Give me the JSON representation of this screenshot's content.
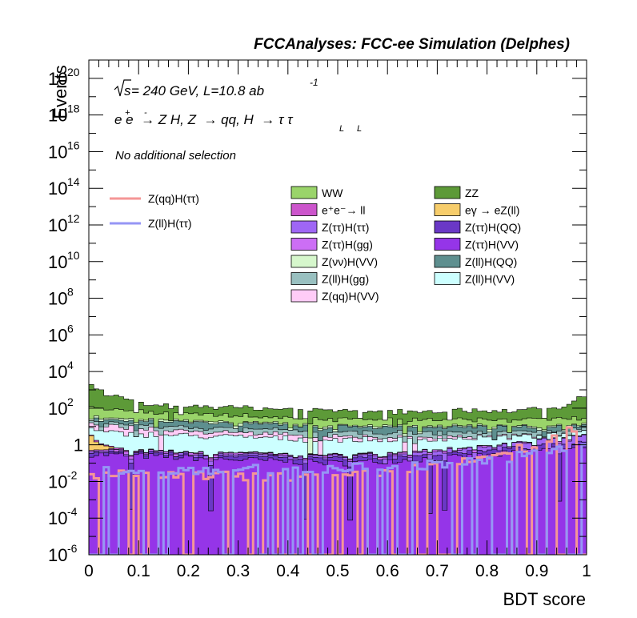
{
  "header": {
    "title": "FCCAnalyses: FCC-ee Simulation (Delphes)"
  },
  "annotations": {
    "sqrt_s": "s",
    "energy_lumi": " = 240 GeV, L=10.8 ab",
    "lumi_exp": "-1",
    "process_main": "e e  → Z H, Z  → qq, H  → τ τ",
    "process_sup": "+",
    "process_sup2": "-",
    "process_sub": "L",
    "selection": "No additional selection"
  },
  "axes": {
    "ylabel": "Events",
    "xlabel": "BDT score"
  },
  "colors": {
    "WW": "#9ad46a",
    "ZZ": "#5d9a38",
    "ee_ll": "#cc55cc",
    "egamma_eZll": "#f7cd6b",
    "Ztautau_Htautau": "#9f66f5",
    "Ztautau_HQQ": "#6a38c6",
    "Ztautau_Hgg": "#cc6ef5",
    "Ztautau_HVV": "#9535e8",
    "Znunu_HVV": "#d6f7cc",
    "Zll_HQQ": "#5e8f8f",
    "Zll_Hgg": "#99c0c0",
    "Zll_HVV": "#ccffff",
    "Zqq_HVV": "#ffccf7",
    "Zqq_Htautau": "#f59696",
    "Zll_Htautau": "#9696f5"
  },
  "chart_data": {
    "type": "area",
    "stacked": true,
    "log_y": true,
    "xlim": [
      0,
      1
    ],
    "ylim": [
      1e-06,
      1e+21
    ],
    "nbins": 100,
    "x_ticks": [
      "0",
      "0.1",
      "0.2",
      "0.3",
      "0.4",
      "0.5",
      "0.6",
      "0.7",
      "0.8",
      "0.9",
      "1"
    ],
    "y_ticks": [
      {
        "base": "10",
        "exp": "-6"
      },
      {
        "base": "10",
        "exp": "-4"
      },
      {
        "base": "10",
        "exp": "-2"
      },
      {
        "base": "1",
        "exp": ""
      },
      {
        "base": "10",
        "exp": "2"
      },
      {
        "base": "10",
        "exp": "4"
      },
      {
        "base": "10",
        "exp": "6"
      },
      {
        "base": "10",
        "exp": "8"
      },
      {
        "base": "10",
        "exp": "10"
      },
      {
        "base": "10",
        "exp": "12"
      },
      {
        "base": "10",
        "exp": "14"
      },
      {
        "base": "10",
        "exp": "16"
      },
      {
        "base": "10",
        "exp": "18"
      },
      {
        "base": "10",
        "exp": "20"
      }
    ],
    "legend_lines": [
      {
        "name": "Z(qq)H(ττ)",
        "color": "#f59696"
      },
      {
        "name": "Z(ll)H(ττ)",
        "color": "#9696f5"
      }
    ],
    "legend_fills": [
      {
        "name": "WW",
        "color": "#9ad46a"
      },
      {
        "name": "ZZ",
        "color": "#5d9a38"
      },
      {
        "name": "e⁺e⁻→ ll",
        "color": "#cc55cc"
      },
      {
        "name": "eγ → eZ(ll)",
        "color": "#f7cd6b"
      },
      {
        "name": "Z(ττ)H(ττ)",
        "color": "#9f66f5"
      },
      {
        "name": "Z(ττ)H(QQ)",
        "color": "#6a38c6"
      },
      {
        "name": "Z(ττ)H(gg)",
        "color": "#cc6ef5"
      },
      {
        "name": "Z(ττ)H(VV)",
        "color": "#9535e8"
      },
      {
        "name": "Z(νν)H(VV)",
        "color": "#d6f7cc"
      },
      {
        "name": "Z(ll)H(QQ)",
        "color": "#5e8f8f"
      },
      {
        "name": "Z(ll)H(gg)",
        "color": "#99c0c0"
      },
      {
        "name": "Z(ll)H(VV)",
        "color": "#ccffff"
      },
      {
        "name": "Z(qq)H(VV)",
        "color": "#ffccf7"
      }
    ],
    "stack_layers": [
      {
        "name": "Z(ττ)H(VV)",
        "color": "#9535e8",
        "shape": [
          [
            0,
            -0.5
          ],
          [
            0.5,
            -1.0
          ],
          [
            0.8,
            -0.6
          ],
          [
            1.0,
            0.0
          ]
        ]
      },
      {
        "name": "Z(ττ)H(QQ)",
        "color": "#6a38c6",
        "shape": [
          [
            0,
            -1.0
          ],
          [
            0.5,
            -1.2
          ],
          [
            0.8,
            -0.8
          ],
          [
            1.0,
            -0.2
          ]
        ]
      },
      {
        "name": "Z(ττ)H(ττ)",
        "color": "#9f66f5",
        "shape": [
          [
            0,
            -1.2
          ],
          [
            0.5,
            -1.3
          ],
          [
            0.8,
            -0.6
          ],
          [
            1.0,
            0.3
          ]
        ]
      },
      {
        "name": "Z(ττ)H(gg)",
        "color": "#cc6ef5",
        "shape": [
          [
            0,
            -1.0
          ],
          [
            0.5,
            -1.5
          ],
          [
            1.0,
            -0.5
          ]
        ]
      },
      {
        "name": "eγ → eZ(ll)",
        "color": "#f7cd6b",
        "shape": [
          [
            0,
            0.5
          ],
          [
            0.02,
            0.0
          ],
          [
            0.06,
            -1.5
          ],
          [
            0.1,
            -3.0
          ],
          [
            1.0,
            -3.0
          ]
        ]
      },
      {
        "name": "e⁺e⁻→ ll",
        "color": "#cc55cc",
        "shape": [
          [
            0,
            -0.5
          ],
          [
            0.1,
            -1.5
          ],
          [
            1.0,
            -2.0
          ]
        ]
      },
      {
        "name": "Z(ll)H(VV)",
        "color": "#ccffff",
        "shape": [
          [
            0,
            0.6
          ],
          [
            0.5,
            0.2
          ],
          [
            1.0,
            0.2
          ]
        ]
      },
      {
        "name": "Z(qq)H(VV)",
        "color": "#ffccf7",
        "shape": [
          [
            0,
            0.9
          ],
          [
            0.2,
            0.4
          ],
          [
            0.5,
            0.0
          ],
          [
            0.8,
            -0.3
          ],
          [
            1.0,
            -0.8
          ]
        ]
      },
      {
        "name": "Z(ll)H(gg)",
        "color": "#99c0c0",
        "shape": [
          [
            0,
            0.7
          ],
          [
            0.5,
            0.3
          ],
          [
            1.0,
            0.3
          ]
        ]
      },
      {
        "name": "Z(ll)H(QQ)",
        "color": "#5e8f8f",
        "shape": [
          [
            0,
            1.0
          ],
          [
            0.5,
            0.7
          ],
          [
            1.0,
            0.6
          ]
        ]
      },
      {
        "name": "Z(νν)H(VV)",
        "color": "#d6f7cc",
        "shape": [
          [
            0,
            0.8
          ],
          [
            0.5,
            0.2
          ],
          [
            1.0,
            0.2
          ]
        ]
      },
      {
        "name": "WW",
        "color": "#9ad46a",
        "shape": [
          [
            0,
            2.0
          ],
          [
            0.1,
            1.6
          ],
          [
            0.5,
            1.1
          ],
          [
            0.8,
            1.1
          ],
          [
            1.0,
            1.2
          ]
        ]
      },
      {
        "name": "ZZ",
        "color": "#5d9a38",
        "shape": [
          [
            0,
            3.6
          ],
          [
            0.01,
            3.0
          ],
          [
            0.1,
            2.0
          ],
          [
            0.5,
            1.7
          ],
          [
            0.8,
            1.7
          ],
          [
            0.95,
            1.8
          ],
          [
            1.0,
            2.8
          ]
        ]
      }
    ],
    "signal_lines": [
      {
        "name": "Z(qq)H(ττ)",
        "color": "#f59696",
        "shape": [
          [
            0,
            -1.6
          ],
          [
            0.5,
            -1.8
          ],
          [
            0.75,
            -1.0
          ],
          [
            0.9,
            0.0
          ],
          [
            0.97,
            0.8
          ],
          [
            1.0,
            1.8
          ]
        ]
      },
      {
        "name": "Z(ll)H(ττ)",
        "color": "#9696f5",
        "shape": [
          [
            0,
            -1.4
          ],
          [
            0.5,
            -1.3
          ],
          [
            0.75,
            -1.0
          ],
          [
            0.9,
            -0.5
          ],
          [
            1.0,
            0.0
          ]
        ]
      }
    ]
  }
}
